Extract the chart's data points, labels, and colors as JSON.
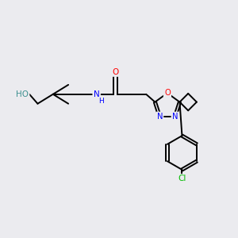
{
  "bg_color": "#ebebef",
  "bond_color": "#000000",
  "atom_colors": {
    "O": "#ff0000",
    "N": "#0000ff",
    "Cl": "#00bb00",
    "HO": "#3d9090",
    "C": "#000000"
  }
}
